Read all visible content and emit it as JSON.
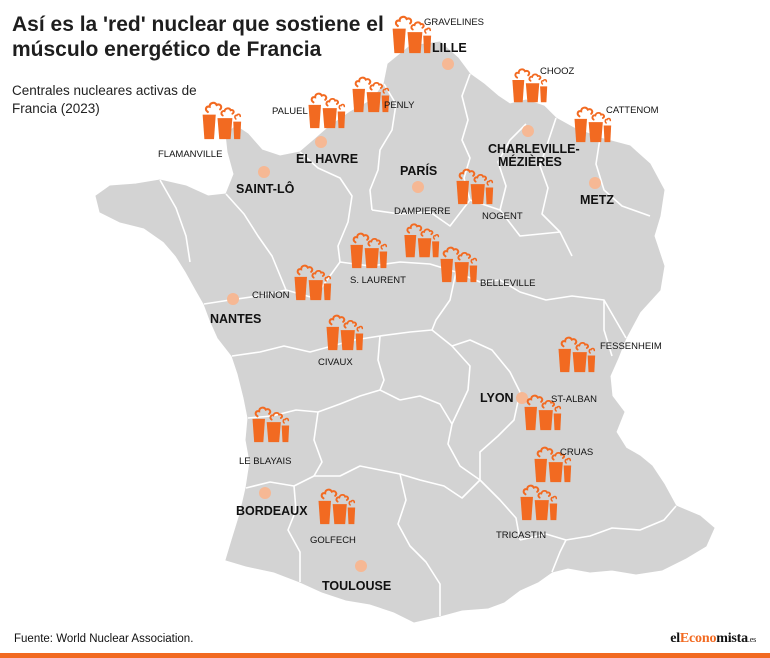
{
  "title": "Así es la 'red' nuclear que sostiene el músculo energético de Francia",
  "subtitle": "Centrales nucleares activas de Francia (2023)",
  "source": "Fuente: World Nuclear Association.",
  "brand": {
    "prefix": "el",
    "accent": "Econo",
    "rest": "mista",
    "suffix": ".es"
  },
  "colors": {
    "plant": "#f26a21",
    "city_dot": "#f6b894",
    "map_fill": "#d3d3d3",
    "border": "#ffffff",
    "accent_bar": "#f26a21"
  },
  "plants": [
    {
      "name": "GRAVELINES"
    },
    {
      "name": "CHOOZ"
    },
    {
      "name": "CATTENOM"
    },
    {
      "name": "PALUEL"
    },
    {
      "name": "PENLY"
    },
    {
      "name": "FLAMANVILLE"
    },
    {
      "name": "NOGENT"
    },
    {
      "name": "DAMPIERRE"
    },
    {
      "name": "S. LAURENT"
    },
    {
      "name": "BELLEVILLE"
    },
    {
      "name": "CHINON"
    },
    {
      "name": "CIVAUX"
    },
    {
      "name": "FESSENHEIM"
    },
    {
      "name": "ST-ALBAN"
    },
    {
      "name": "LE BLAYAIS"
    },
    {
      "name": "CRUAS"
    },
    {
      "name": "GOLFECH"
    },
    {
      "name": "TRICASTIN"
    }
  ],
  "cities": [
    {
      "name": "LILLE"
    },
    {
      "name": "EL HAVRE"
    },
    {
      "name": "CHARLEVILLE-"
    },
    {
      "name": "MÉZIÈRES"
    },
    {
      "name": "SAINT-LÔ"
    },
    {
      "name": "PARÍS"
    },
    {
      "name": "METZ"
    },
    {
      "name": "NANTES"
    },
    {
      "name": "LYON"
    },
    {
      "name": "BORDEAUX"
    },
    {
      "name": "TOULOUSE"
    }
  ]
}
